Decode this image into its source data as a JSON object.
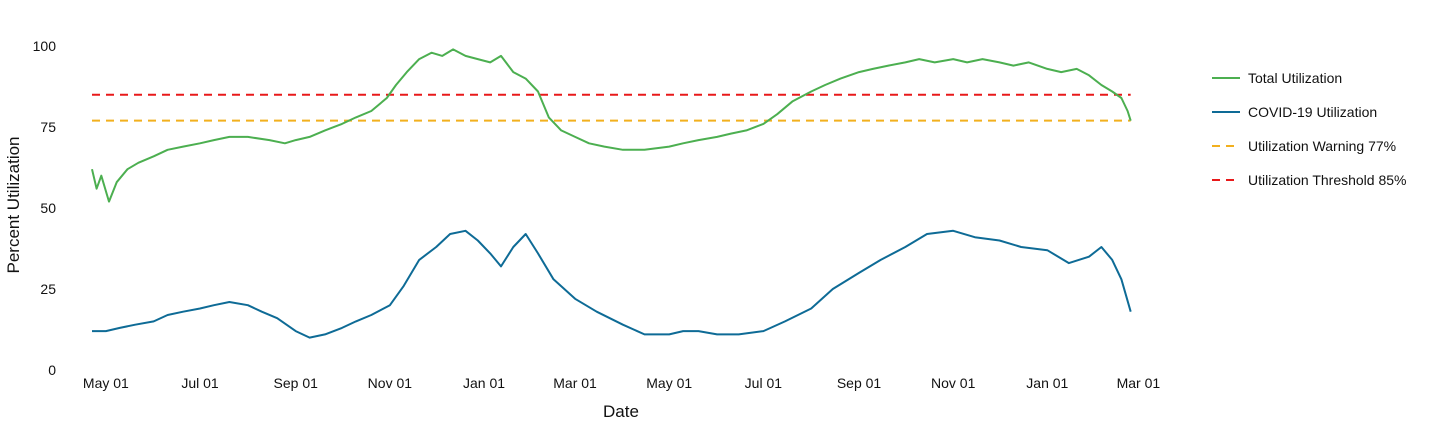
{
  "chart_data": {
    "type": "line",
    "title": "",
    "xlabel": "Date",
    "ylabel": "Percent Utilization",
    "ylim": [
      0,
      105
    ],
    "y_ticks": [
      0,
      25,
      50,
      75,
      100
    ],
    "x_ticks": [
      {
        "label": "May 01",
        "date": "2020-05-01"
      },
      {
        "label": "Jul 01",
        "date": "2020-07-01"
      },
      {
        "label": "Sep 01",
        "date": "2020-09-01"
      },
      {
        "label": "Nov 01",
        "date": "2020-11-01"
      },
      {
        "label": "Jan 01",
        "date": "2021-01-01"
      },
      {
        "label": "Mar 01",
        "date": "2021-03-01"
      },
      {
        "label": "May 01",
        "date": "2021-05-01"
      },
      {
        "label": "Jul 01",
        "date": "2021-07-01"
      },
      {
        "label": "Sep 01",
        "date": "2021-09-01"
      },
      {
        "label": "Nov 01",
        "date": "2021-11-01"
      },
      {
        "label": "Jan 01",
        "date": "2022-01-01"
      },
      {
        "label": "Mar 01",
        "date": "2022-03-01"
      }
    ],
    "xlim": [
      "2020-04-22",
      "2022-03-15"
    ],
    "grid": false,
    "legend_position": "right",
    "series": [
      {
        "name": "Total Utilization",
        "color": "#4caf50",
        "x": [
          "2020-04-22",
          "2020-04-25",
          "2020-04-28",
          "2020-05-03",
          "2020-05-08",
          "2020-05-15",
          "2020-05-22",
          "2020-06-01",
          "2020-06-10",
          "2020-06-20",
          "2020-07-01",
          "2020-07-10",
          "2020-07-20",
          "2020-08-01",
          "2020-08-15",
          "2020-08-25",
          "2020-09-01",
          "2020-09-10",
          "2020-09-20",
          "2020-10-01",
          "2020-10-10",
          "2020-10-20",
          "2020-10-30",
          "2020-11-05",
          "2020-11-12",
          "2020-11-20",
          "2020-11-28",
          "2020-12-05",
          "2020-12-12",
          "2020-12-20",
          "2020-12-28",
          "2021-01-05",
          "2021-01-12",
          "2021-01-20",
          "2021-01-28",
          "2021-02-05",
          "2021-02-12",
          "2021-02-20",
          "2021-03-01",
          "2021-03-10",
          "2021-03-20",
          "2021-04-01",
          "2021-04-15",
          "2021-05-01",
          "2021-05-10",
          "2021-05-20",
          "2021-06-01",
          "2021-06-10",
          "2021-06-20",
          "2021-07-01",
          "2021-07-10",
          "2021-07-20",
          "2021-08-01",
          "2021-08-10",
          "2021-08-20",
          "2021-09-01",
          "2021-09-10",
          "2021-09-20",
          "2021-10-01",
          "2021-10-10",
          "2021-10-20",
          "2021-11-01",
          "2021-11-10",
          "2021-11-20",
          "2021-12-01",
          "2021-12-10",
          "2021-12-20",
          "2022-01-01",
          "2022-01-10",
          "2022-01-20",
          "2022-01-28",
          "2022-02-05",
          "2022-02-12",
          "2022-02-18",
          "2022-02-22",
          "2022-02-24"
        ],
        "y": [
          62,
          56,
          60,
          52,
          58,
          62,
          64,
          66,
          68,
          69,
          70,
          71,
          72,
          72,
          71,
          70,
          71,
          72,
          74,
          76,
          78,
          80,
          84,
          88,
          92,
          96,
          98,
          97,
          99,
          97,
          96,
          95,
          97,
          92,
          90,
          86,
          78,
          74,
          72,
          70,
          69,
          68,
          68,
          69,
          70,
          71,
          72,
          73,
          74,
          76,
          79,
          83,
          86,
          88,
          90,
          92,
          93,
          94,
          95,
          96,
          95,
          96,
          95,
          96,
          95,
          94,
          95,
          93,
          92,
          93,
          91,
          88,
          86,
          84,
          80,
          77
        ]
      },
      {
        "name": "COVID-19 Utilization",
        "color": "#0e6b96",
        "x": [
          "2020-04-22",
          "2020-05-01",
          "2020-05-10",
          "2020-05-20",
          "2020-06-01",
          "2020-06-10",
          "2020-06-20",
          "2020-07-01",
          "2020-07-10",
          "2020-07-20",
          "2020-08-01",
          "2020-08-10",
          "2020-08-20",
          "2020-09-01",
          "2020-09-10",
          "2020-09-20",
          "2020-10-01",
          "2020-10-10",
          "2020-10-20",
          "2020-11-01",
          "2020-11-10",
          "2020-11-20",
          "2020-12-01",
          "2020-12-10",
          "2020-12-20",
          "2020-12-28",
          "2021-01-05",
          "2021-01-12",
          "2021-01-20",
          "2021-01-28",
          "2021-02-05",
          "2021-02-15",
          "2021-03-01",
          "2021-03-15",
          "2021-04-01",
          "2021-04-15",
          "2021-05-01",
          "2021-05-10",
          "2021-05-20",
          "2021-06-01",
          "2021-06-15",
          "2021-07-01",
          "2021-07-15",
          "2021-08-01",
          "2021-08-15",
          "2021-09-01",
          "2021-09-15",
          "2021-10-01",
          "2021-10-15",
          "2021-11-01",
          "2021-11-15",
          "2021-12-01",
          "2021-12-15",
          "2022-01-01",
          "2022-01-15",
          "2022-01-28",
          "2022-02-05",
          "2022-02-12",
          "2022-02-18",
          "2022-02-24"
        ],
        "y": [
          12,
          12,
          13,
          14,
          15,
          17,
          18,
          19,
          20,
          21,
          20,
          18,
          16,
          12,
          10,
          11,
          13,
          15,
          17,
          20,
          26,
          34,
          38,
          42,
          43,
          40,
          36,
          32,
          38,
          42,
          36,
          28,
          22,
          18,
          14,
          11,
          11,
          12,
          12,
          11,
          11,
          12,
          15,
          19,
          25,
          30,
          34,
          38,
          42,
          43,
          41,
          40,
          38,
          37,
          33,
          35,
          38,
          34,
          28,
          18
        ]
      }
    ],
    "reference_lines": [
      {
        "name": "Utilization Warning 77%",
        "value": 77,
        "color": "#f2b01e",
        "style": "dashed"
      },
      {
        "name": "Utilization Threshold 85%",
        "value": 85,
        "color": "#e8191a",
        "style": "dashed"
      }
    ],
    "legend": [
      {
        "label": "Total Utilization",
        "color": "#4caf50",
        "style": "solid"
      },
      {
        "label": "COVID-19 Utilization",
        "color": "#0e6b96",
        "style": "solid"
      },
      {
        "label": "Utilization Warning 77%",
        "color": "#f2b01e",
        "style": "dashed"
      },
      {
        "label": "Utilization Threshold 85%",
        "color": "#e8191a",
        "style": "dashed"
      }
    ]
  }
}
